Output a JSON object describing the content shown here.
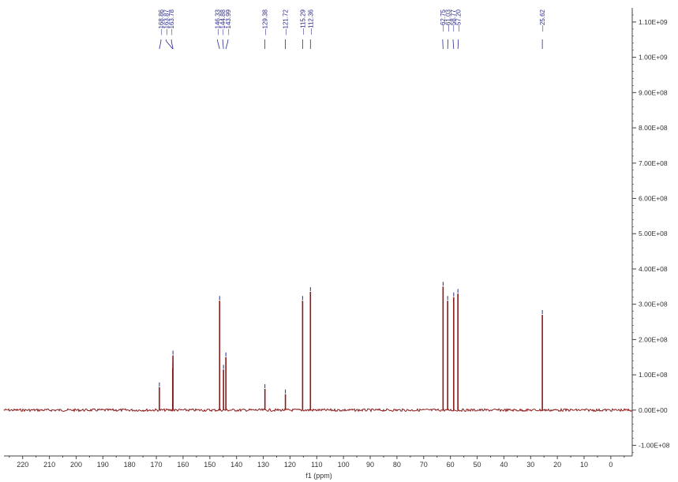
{
  "chart_data": {
    "type": "line",
    "title": "",
    "xlabel": "f1 (ppm)",
    "ylabel": "",
    "x_reversed": true,
    "xlim": [
      227,
      -8
    ],
    "ylim": [
      -130000000.0,
      1140000000.0
    ],
    "x_ticks": [
      220,
      210,
      200,
      190,
      180,
      170,
      160,
      150,
      140,
      130,
      120,
      110,
      100,
      90,
      80,
      70,
      60,
      50,
      40,
      30,
      20,
      10,
      0
    ],
    "y_ticks": [
      {
        "value": 1100000000.0,
        "label": "1.10E+09"
      },
      {
        "value": 1000000000.0,
        "label": "1.00E+09"
      },
      {
        "value": 900000000.0,
        "label": "9.00E+08"
      },
      {
        "value": 800000000.0,
        "label": "8.00E+08"
      },
      {
        "value": 700000000.0,
        "label": "7.00E+08"
      },
      {
        "value": 600000000.0,
        "label": "6.00E+08"
      },
      {
        "value": 500000000.0,
        "label": "5.00E+08"
      },
      {
        "value": 400000000.0,
        "label": "4.00E+08"
      },
      {
        "value": 300000000.0,
        "label": "3.00E+08"
      },
      {
        "value": 200000000.0,
        "label": "2.00E+08"
      },
      {
        "value": 100000000.0,
        "label": "1.00E+08"
      },
      {
        "value": 0,
        "label": "0.00E+00"
      },
      {
        "value": -100000000.0,
        "label": "-1.00E+08"
      }
    ],
    "grid": false,
    "legend": "none",
    "peaks": [
      {
        "ppm": 168.86,
        "label": "168.86",
        "intensity": 65000000.0
      },
      {
        "ppm": 163.87,
        "label": "163.87",
        "intensity": 120000000.0
      },
      {
        "ppm": 163.78,
        "label": "163.78",
        "intensity": 155000000.0
      },
      {
        "ppm": 146.33,
        "label": "146.33",
        "intensity": 310000000.0
      },
      {
        "ppm": 144.88,
        "label": "144.88",
        "intensity": 115000000.0
      },
      {
        "ppm": 143.99,
        "label": "143.99",
        "intensity": 150000000.0
      },
      {
        "ppm": 129.38,
        "label": "129.38",
        "intensity": 60000000.0
      },
      {
        "ppm": 121.72,
        "label": "121.72",
        "intensity": 45000000.0
      },
      {
        "ppm": 115.29,
        "label": "115.29",
        "intensity": 310000000.0
      },
      {
        "ppm": 112.36,
        "label": "112.36",
        "intensity": 335000000.0
      },
      {
        "ppm": 62.75,
        "label": "62.75",
        "intensity": 350000000.0
      },
      {
        "ppm": 61.03,
        "label": "61.03",
        "intensity": 310000000.0
      },
      {
        "ppm": 58.77,
        "label": "58.77",
        "intensity": 320000000.0
      },
      {
        "ppm": 57.2,
        "label": "57.20",
        "intensity": 330000000.0
      },
      {
        "ppm": 25.62,
        "label": "25.62",
        "intensity": 270000000.0
      }
    ],
    "colors": {
      "spectrum": "#8b1a1a",
      "peak_labels": "#2a2a8c",
      "axis": "#444444"
    }
  }
}
